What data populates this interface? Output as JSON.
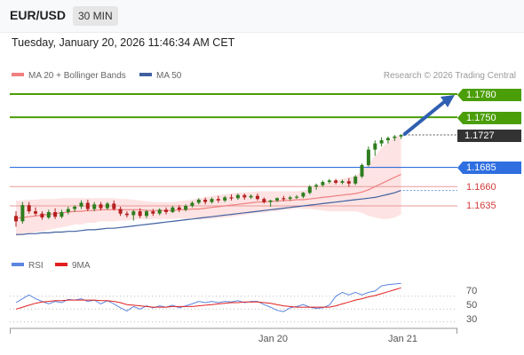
{
  "header": {
    "pair": "EUR/USD",
    "timeframe": "30 MIN"
  },
  "timestamp": "Tuesday, January 20, 2026 11:46:34 AM CET",
  "legend": {
    "ma20_label": "MA 20 + Bollinger Bands",
    "ma50_label": "MA 50",
    "credit": "Research © 2026 Trading Central"
  },
  "colors": {
    "resistance": "#4a9e08",
    "current": "#333333",
    "pivot": "#2f6fe0",
    "support": "#d43c3c",
    "ma20": "#f08080",
    "ma50": "#4060a0",
    "rsi": "#5b85e0",
    "rsi_ma": "#e02020"
  },
  "levels": [
    {
      "type": "resistance",
      "label": "1.1780"
    },
    {
      "type": "resistance",
      "label": "1.1750"
    },
    {
      "type": "current",
      "label": "1.1727"
    },
    {
      "type": "pivot",
      "label": "1.1685"
    },
    {
      "type": "support",
      "label": "1.1660"
    },
    {
      "type": "support",
      "label": "1.1635"
    }
  ],
  "rsi_panel": {
    "rsi_label": "RSI",
    "ma_label": "9MA",
    "levels": [
      "70",
      "50",
      "30"
    ]
  },
  "x_labels": [
    "Jan 20",
    "Jan 21"
  ],
  "chart_data": {
    "type": "candlestick",
    "price_levels": [
      1.178,
      1.175,
      1.1727,
      1.1685,
      1.166,
      1.1635
    ],
    "pivot": 1.1685,
    "projection": {
      "from": 1.1727,
      "to": 1.178
    },
    "candles": [
      [
        1.1622,
        1.1628,
        1.1608,
        1.1615
      ],
      [
        1.1615,
        1.164,
        1.1612,
        1.1636
      ],
      [
        1.1636,
        1.164,
        1.1625,
        1.1628
      ],
      [
        1.1628,
        1.1633,
        1.1622,
        1.1625
      ],
      [
        1.1625,
        1.1628,
        1.1617,
        1.162
      ],
      [
        1.162,
        1.163,
        1.1618,
        1.1627
      ],
      [
        1.1627,
        1.1632,
        1.1618,
        1.1621
      ],
      [
        1.1621,
        1.163,
        1.1619,
        1.1627
      ],
      [
        1.1627,
        1.1634,
        1.1624,
        1.1631
      ],
      [
        1.1631,
        1.1636,
        1.1627,
        1.1634
      ],
      [
        1.1634,
        1.1642,
        1.1631,
        1.1639
      ],
      [
        1.1639,
        1.1643,
        1.1628,
        1.1631
      ],
      [
        1.1631,
        1.164,
        1.1628,
        1.1637
      ],
      [
        1.1637,
        1.164,
        1.1629,
        1.1632
      ],
      [
        1.1632,
        1.164,
        1.163,
        1.1638
      ],
      [
        1.1638,
        1.1642,
        1.1629,
        1.1631
      ],
      [
        1.1631,
        1.1634,
        1.1622,
        1.1625
      ],
      [
        1.1625,
        1.1628,
        1.162,
        1.1623
      ],
      [
        1.1623,
        1.163,
        1.1616,
        1.1628
      ],
      [
        1.1628,
        1.1632,
        1.1619,
        1.1622
      ],
      [
        1.1622,
        1.163,
        1.1619,
        1.1628
      ],
      [
        1.1628,
        1.1631,
        1.1622,
        1.1625
      ],
      [
        1.1625,
        1.1632,
        1.1623,
        1.163
      ],
      [
        1.163,
        1.1633,
        1.1624,
        1.1627
      ],
      [
        1.1627,
        1.1635,
        1.1626,
        1.1633
      ],
      [
        1.1633,
        1.1636,
        1.1627,
        1.163
      ],
      [
        1.163,
        1.1637,
        1.1628,
        1.1635
      ],
      [
        1.1635,
        1.1641,
        1.1633,
        1.1639
      ],
      [
        1.1639,
        1.1645,
        1.1637,
        1.1643
      ],
      [
        1.1643,
        1.1646,
        1.1637,
        1.164
      ],
      [
        1.164,
        1.1646,
        1.1638,
        1.1644
      ],
      [
        1.1644,
        1.1648,
        1.1639,
        1.1642
      ],
      [
        1.1642,
        1.1648,
        1.164,
        1.1646
      ],
      [
        1.1646,
        1.165,
        1.1642,
        1.1645
      ],
      [
        1.1645,
        1.1651,
        1.1643,
        1.1649
      ],
      [
        1.1649,
        1.1651,
        1.1643,
        1.1646
      ],
      [
        1.1646,
        1.165,
        1.1644,
        1.1648
      ],
      [
        1.1648,
        1.1651,
        1.1642,
        1.1644
      ],
      [
        1.1644,
        1.1646,
        1.1638,
        1.164
      ],
      [
        1.164,
        1.1643,
        1.1634,
        1.1642
      ],
      [
        1.1642,
        1.1646,
        1.164,
        1.1645
      ],
      [
        1.1645,
        1.1648,
        1.1641,
        1.1644
      ],
      [
        1.1644,
        1.1648,
        1.1642,
        1.1646
      ],
      [
        1.1646,
        1.1649,
        1.1644,
        1.1647
      ],
      [
        1.1647,
        1.1653,
        1.1645,
        1.1652
      ],
      [
        1.1652,
        1.1662,
        1.165,
        1.166
      ],
      [
        1.166,
        1.1664,
        1.1656,
        1.1662
      ],
      [
        1.1662,
        1.1668,
        1.166,
        1.1666
      ],
      [
        1.1666,
        1.167,
        1.1664,
        1.1668
      ],
      [
        1.1668,
        1.167,
        1.1663,
        1.1665
      ],
      [
        1.1665,
        1.1669,
        1.1663,
        1.1667
      ],
      [
        1.1667,
        1.1671,
        1.166,
        1.1664
      ],
      [
        1.1664,
        1.1675,
        1.1662,
        1.1673
      ],
      [
        1.1673,
        1.169,
        1.1671,
        1.1688
      ],
      [
        1.1688,
        1.1712,
        1.1686,
        1.1708
      ],
      [
        1.1708,
        1.172,
        1.17,
        1.1716
      ],
      [
        1.1716,
        1.1724,
        1.1712,
        1.172
      ],
      [
        1.172,
        1.1725,
        1.1716,
        1.1723
      ],
      [
        1.1723,
        1.1727,
        1.1719,
        1.1725
      ],
      [
        1.1725,
        1.1728,
        1.1722,
        1.1727
      ]
    ],
    "ma20": [
      1.1619,
      1.162,
      1.1621,
      1.1622,
      1.1623,
      1.1624,
      1.1625,
      1.1626,
      1.1627,
      1.1628,
      1.1628,
      1.1629,
      1.1629,
      1.163,
      1.163,
      1.163,
      1.163,
      1.163,
      1.163,
      1.163,
      1.1629,
      1.1629,
      1.1629,
      1.1629,
      1.1629,
      1.163,
      1.163,
      1.1631,
      1.1631,
      1.1632,
      1.1633,
      1.1634,
      1.1635,
      1.1636,
      1.1637,
      1.1638,
      1.1639,
      1.164,
      1.164,
      1.1641,
      1.1641,
      1.1642,
      1.1642,
      1.1643,
      1.1643,
      1.1644,
      1.1645,
      1.1646,
      1.1647,
      1.1648,
      1.1649,
      1.165,
      1.1651,
      1.1653,
      1.1656,
      1.166,
      1.1664,
      1.1668,
      1.1672,
      1.1676
    ],
    "bb_upper": [
      1.1642,
      1.1642,
      1.1643,
      1.1643,
      1.1644,
      1.1644,
      1.1644,
      1.1645,
      1.1645,
      1.1645,
      1.1645,
      1.1645,
      1.1645,
      1.1645,
      1.1645,
      1.1645,
      1.1644,
      1.1644,
      1.1643,
      1.1642,
      1.1641,
      1.164,
      1.164,
      1.164,
      1.164,
      1.1641,
      1.1642,
      1.1643,
      1.1645,
      1.1646,
      1.1648,
      1.1649,
      1.165,
      1.1651,
      1.1652,
      1.1653,
      1.1653,
      1.1654,
      1.1654,
      1.1654,
      1.1654,
      1.1654,
      1.1654,
      1.1654,
      1.1655,
      1.1657,
      1.166,
      1.1663,
      1.1666,
      1.1668,
      1.167,
      1.1672,
      1.1674,
      1.168,
      1.169,
      1.17,
      1.171,
      1.1718,
      1.1724,
      1.1728
    ],
    "bb_lower": [
      1.1596,
      1.1597,
      1.1599,
      1.1601,
      1.1602,
      1.1604,
      1.1606,
      1.1607,
      1.1609,
      1.1611,
      1.1611,
      1.1613,
      1.1613,
      1.1615,
      1.1615,
      1.1615,
      1.1616,
      1.1616,
      1.1617,
      1.1618,
      1.1617,
      1.1618,
      1.1618,
      1.1618,
      1.1618,
      1.1619,
      1.1618,
      1.1619,
      1.1617,
      1.1618,
      1.1618,
      1.1619,
      1.162,
      1.1621,
      1.1622,
      1.1623,
      1.1625,
      1.1626,
      1.1626,
      1.1628,
      1.1628,
      1.163,
      1.163,
      1.1632,
      1.1631,
      1.1631,
      1.163,
      1.1629,
      1.1628,
      1.1628,
      1.1628,
      1.1628,
      1.1628,
      1.1626,
      1.1622,
      1.162,
      1.1618,
      1.1618,
      1.162,
      1.1624
    ],
    "ma50": [
      1.1598,
      1.1598,
      1.1599,
      1.1599,
      1.16,
      1.16,
      1.1601,
      1.1601,
      1.1602,
      1.1602,
      1.1603,
      1.1604,
      1.1604,
      1.1605,
      1.1606,
      1.1606,
      1.1607,
      1.1608,
      1.1609,
      1.161,
      1.1611,
      1.1612,
      1.1613,
      1.1614,
      1.1615,
      1.1616,
      1.1617,
      1.1618,
      1.1619,
      1.162,
      1.1621,
      1.1622,
      1.1623,
      1.1624,
      1.1625,
      1.1626,
      1.1627,
      1.1628,
      1.1629,
      1.163,
      1.1631,
      1.1632,
      1.1633,
      1.1634,
      1.1635,
      1.1636,
      1.1637,
      1.1638,
      1.1639,
      1.164,
      1.1641,
      1.1642,
      1.1643,
      1.1644,
      1.1645,
      1.1646,
      1.1648,
      1.165,
      1.1652,
      1.1655
    ],
    "rsi": [
      60,
      66,
      72,
      66,
      62,
      58,
      62,
      60,
      65,
      64,
      66,
      62,
      64,
      58,
      63,
      58,
      52,
      47,
      54,
      50,
      55,
      52,
      55,
      53,
      56,
      52,
      55,
      58,
      62,
      60,
      62,
      60,
      62,
      61,
      63,
      60,
      62,
      62,
      57,
      53,
      48,
      46,
      52,
      54,
      57,
      53,
      51,
      52,
      56,
      70,
      76,
      72,
      76,
      72,
      76,
      78,
      86,
      88,
      89,
      90
    ],
    "rsi_ma": [
      50,
      53,
      56,
      59,
      61,
      62,
      63,
      63,
      64,
      64,
      64,
      64,
      64,
      63,
      63,
      62,
      60,
      57,
      56,
      55,
      54,
      53,
      53,
      53,
      54,
      54,
      54,
      54,
      55,
      56,
      57,
      58,
      59,
      60,
      60,
      61,
      61,
      61,
      60,
      59,
      57,
      55,
      54,
      53,
      53,
      53,
      53,
      53,
      53,
      55,
      58,
      61,
      64,
      66,
      69,
      71,
      74,
      77,
      80,
      83
    ],
    "x_axis_labels": [
      "Jan 20",
      "Jan 21"
    ]
  }
}
